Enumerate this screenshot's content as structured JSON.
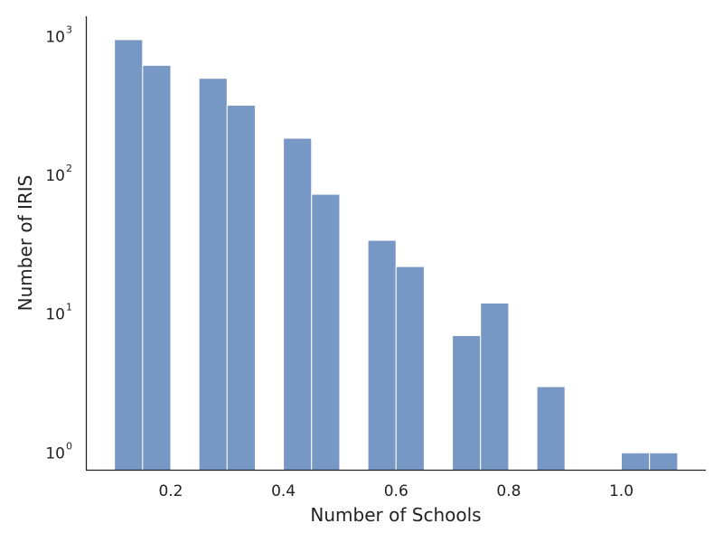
{
  "chart_data": {
    "type": "bar",
    "subtype": "histogram",
    "title": "",
    "xlabel": "Number of Schools",
    "ylabel": "Number of IRIS",
    "yscale": "log",
    "xlim": [
      0.05,
      1.15
    ],
    "ylim": [
      0.75,
      1400
    ],
    "grid": false,
    "bar_color": "#7797c5",
    "x_ticks": [
      0.2,
      0.4,
      0.6,
      0.8,
      1.0
    ],
    "x_tick_labels": [
      "0.2",
      "0.4",
      "0.6",
      "0.8",
      "1.0"
    ],
    "y_ticks": [
      {
        "value": 1,
        "base": "10",
        "exponent": "0"
      },
      {
        "value": 10,
        "base": "10",
        "exponent": "1"
      },
      {
        "value": 100,
        "base": "10",
        "exponent": "2"
      },
      {
        "value": 1000,
        "base": "10",
        "exponent": "3"
      }
    ],
    "bins": [
      {
        "x0": 0.1,
        "x1": 0.15,
        "count": 950
      },
      {
        "x0": 0.15,
        "x1": 0.2,
        "count": 620
      },
      {
        "x0": 0.2,
        "x1": 0.25,
        "count": 0
      },
      {
        "x0": 0.25,
        "x1": 0.3,
        "count": 500
      },
      {
        "x0": 0.3,
        "x1": 0.35,
        "count": 320
      },
      {
        "x0": 0.35,
        "x1": 0.4,
        "count": 0
      },
      {
        "x0": 0.4,
        "x1": 0.45,
        "count": 185
      },
      {
        "x0": 0.45,
        "x1": 0.5,
        "count": 73
      },
      {
        "x0": 0.5,
        "x1": 0.55,
        "count": 0
      },
      {
        "x0": 0.55,
        "x1": 0.6,
        "count": 34
      },
      {
        "x0": 0.6,
        "x1": 0.65,
        "count": 22
      },
      {
        "x0": 0.65,
        "x1": 0.7,
        "count": 0
      },
      {
        "x0": 0.7,
        "x1": 0.75,
        "count": 7
      },
      {
        "x0": 0.75,
        "x1": 0.8,
        "count": 12
      },
      {
        "x0": 0.8,
        "x1": 0.85,
        "count": 0
      },
      {
        "x0": 0.85,
        "x1": 0.9,
        "count": 3
      },
      {
        "x0": 0.9,
        "x1": 0.95,
        "count": 0
      },
      {
        "x0": 0.95,
        "x1": 1.0,
        "count": 0
      },
      {
        "x0": 1.0,
        "x1": 1.05,
        "count": 1
      },
      {
        "x0": 1.05,
        "x1": 1.1,
        "count": 1
      }
    ]
  }
}
